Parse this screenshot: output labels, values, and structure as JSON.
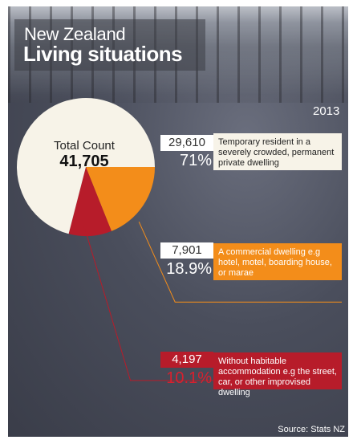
{
  "header": {
    "title_line1": "New Zealand",
    "title_line2": "Living situations",
    "year": "2013"
  },
  "chart_data": {
    "type": "pie",
    "total_label": "Total Count",
    "total_value": "41,705",
    "categories": [
      {
        "count": "29,610",
        "value": 29610,
        "percent_label": "71%",
        "percent": 71,
        "description": "Temporary resident in a severely crowded, permanent private dwelling",
        "color": "#f7f3e8"
      },
      {
        "count": "7,901",
        "value": 7901,
        "percent_label": "18.9%",
        "percent": 18.9,
        "description": "A commercial dwelling e.g hotel, motel, boarding house, or marae",
        "color": "#f38d1a"
      },
      {
        "count": "4,197",
        "value": 4197,
        "percent_label": "10.1%",
        "percent": 10.1,
        "description": "Without habitable accommodation e.g the street, car, or other improvised dwelling",
        "color": "#b71c2a"
      }
    ]
  },
  "footer": {
    "source": "Source: Stats NZ"
  }
}
